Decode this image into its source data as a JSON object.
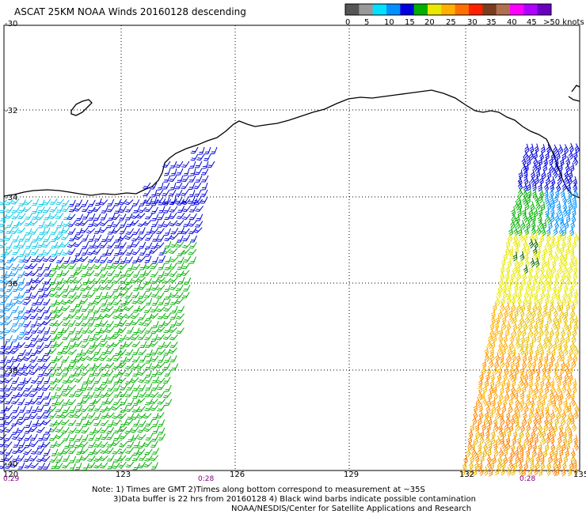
{
  "title": "ASCAT 25KM NOAA Winds 20160128 descending",
  "legend": {
    "colors": [
      "#555555",
      "#999999",
      "#00e0ff",
      "#0090ff",
      "#0000dd",
      "#00b000",
      "#e8e800",
      "#ffb000",
      "#ff7000",
      "#ff2000",
      "#7a3b1e",
      "#b07050",
      "#ff00ff",
      "#b000ff",
      "#6a00c0"
    ],
    "labels": [
      "0",
      "5",
      "10",
      "15",
      "20",
      "25",
      "30",
      "35",
      "40",
      "45",
      ">50 knots"
    ]
  },
  "axes": {
    "lat_labels": [
      "-30",
      "-32",
      "-34",
      "-36",
      "-38",
      "-40"
    ],
    "lon_labels": [
      "120",
      "123",
      "126",
      "129",
      "132",
      "135"
    ],
    "lat_range": [
      -40,
      -30
    ],
    "lon_range": [
      120,
      135
    ]
  },
  "time_labels": [
    "0:29",
    "0:28",
    "0:28"
  ],
  "notes": [
    "Note: 1) Times are GMT 2)Times along bottom correspond to measurement at ~35S",
    "3)Data buffer is 22 hrs from 20160128 4) Black wind barbs indicate possible contamination",
    "NOAA/NESDIS/Center for Satellite Applications and Research"
  ]
}
